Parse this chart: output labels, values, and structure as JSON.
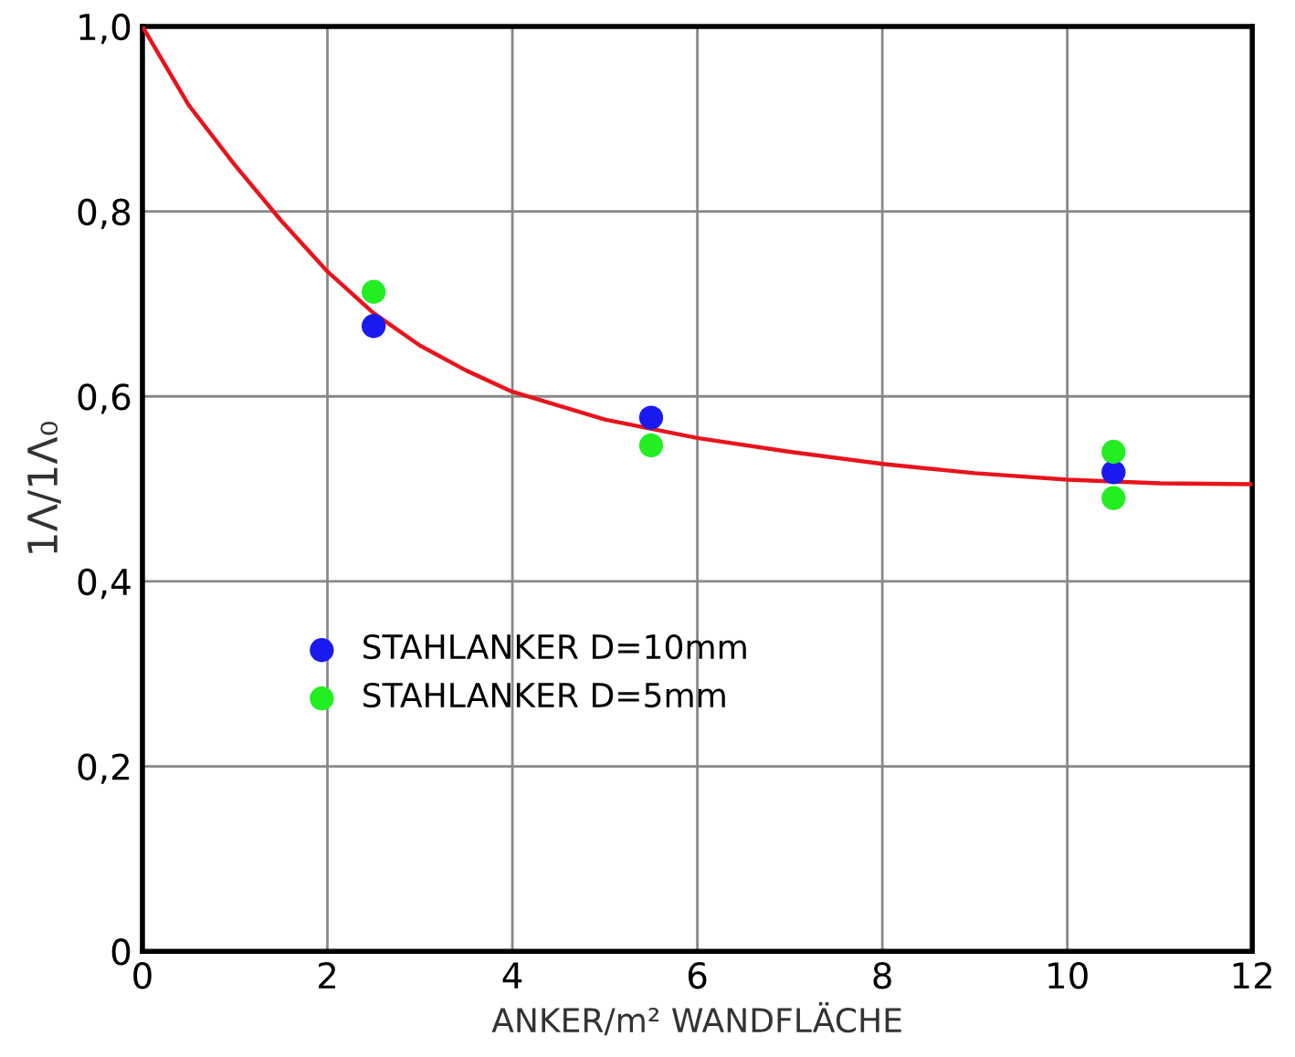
{
  "chart_data": {
    "type": "scatter",
    "xlabel": "ANKER/m² WANDFLÄCHE",
    "ylabel": "1Λ/1Λ₀",
    "xlim": [
      0,
      12
    ],
    "ylim": [
      0,
      1.0
    ],
    "xticks": [
      0,
      2,
      4,
      6,
      8,
      10,
      12
    ],
    "yticks": [
      {
        "value": 0,
        "label": "0"
      },
      {
        "value": 0.2,
        "label": "0,2"
      },
      {
        "value": 0.4,
        "label": "0,4"
      },
      {
        "value": 0.6,
        "label": "0,6"
      },
      {
        "value": 0.8,
        "label": "0,8"
      },
      {
        "value": 1.0,
        "label": "1,0"
      }
    ],
    "grid": true,
    "legend": "left",
    "series": [
      {
        "type": "line",
        "color": "#e8141c",
        "x": [
          0,
          0.5,
          1,
          1.5,
          2,
          2.5,
          3,
          3.5,
          4,
          5,
          6,
          7,
          8,
          9,
          10,
          11,
          12
        ],
        "values": [
          1.0,
          0.915,
          0.85,
          0.79,
          0.735,
          0.69,
          0.655,
          0.628,
          0.605,
          0.575,
          0.555,
          0.54,
          0.527,
          0.517,
          0.51,
          0.506,
          0.505
        ]
      },
      {
        "name": "STAHLANKER D=10mm",
        "marker": "circle",
        "color": "#1a1aee",
        "x": [
          2.5,
          5.5,
          10.5
        ],
        "values": [
          0.676,
          0.577,
          0.518
        ]
      },
      {
        "name": "STAHLANKER D=5mm",
        "marker": "circle",
        "color": "#22ee22",
        "x": [
          2.5,
          5.5,
          10.5,
          10.5
        ],
        "values": [
          0.713,
          0.547,
          0.54,
          0.49
        ]
      }
    ]
  }
}
